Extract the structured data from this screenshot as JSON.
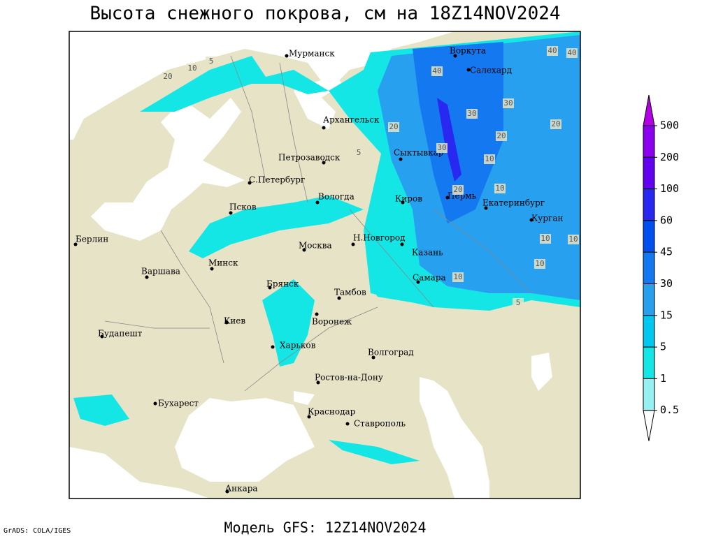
{
  "title": "Высота снежного покрова, см на 18Z14NOV2024",
  "footer": "Модель GFS: 12Z14NOV2024",
  "credit": "GrADS: COLA/IGES",
  "cities": [
    "Мурманск",
    "Архангельск",
    "Воркута",
    "Салехард",
    "Петрозаводск",
    "Сыктывкар",
    "С.Петербург",
    "Вологда",
    "Киров",
    "Пермь",
    "Екатеринбург",
    "Курган",
    "Псков",
    "Берлин",
    "Москва",
    "Н.Новгород",
    "Казань",
    "Минск",
    "Варшава",
    "Самара",
    "Брянск",
    "Тамбов",
    "Воронеж",
    "Киев",
    "Будапешт",
    "Харьков",
    "Волгоград",
    "Ростов-на-Дону",
    "Бухарест",
    "Краснодар",
    "Ставрополь",
    "Анкара"
  ],
  "contour_labels": [
    "10",
    "20",
    "5",
    "40",
    "40",
    "40",
    "30",
    "30",
    "20",
    "20",
    "20",
    "30",
    "10",
    "10",
    "10",
    "10",
    "10",
    "20",
    "10",
    "5",
    "5"
  ],
  "colorbar": {
    "levels": [
      500,
      200,
      100,
      60,
      45,
      30,
      15,
      5,
      1,
      0.5
    ],
    "colors": [
      "#b400e6",
      "#8c00f0",
      "#6400f0",
      "#2828f0",
      "#0050f0",
      "#1478f0",
      "#28a0f0",
      "#00c8f0",
      "#14e6e6",
      "#96f0f0",
      "#ffffff"
    ]
  }
}
